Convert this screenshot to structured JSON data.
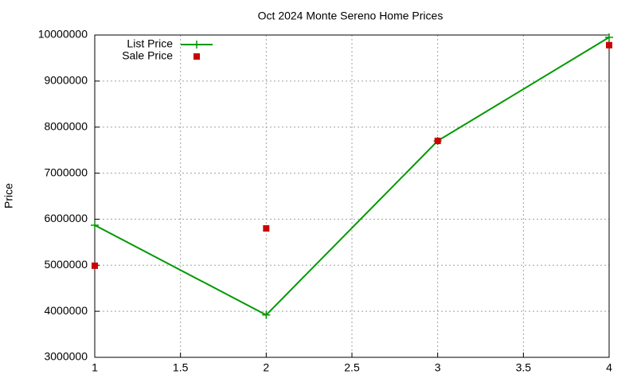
{
  "chart_data": {
    "type": "line",
    "title": "Oct 2024 Monte Sereno Home Prices",
    "y_label": "Price",
    "x": [
      1,
      2,
      3,
      4
    ],
    "series": [
      {
        "name": "List Price",
        "color": "#009900",
        "style": "linespoints",
        "values": [
          5870000,
          3920000,
          7700000,
          9950000
        ]
      },
      {
        "name": "Sale Price",
        "color": "#cc0000",
        "style": "points",
        "values": [
          4990000,
          5800000,
          7700000,
          9780000
        ]
      }
    ],
    "xlim": [
      1,
      4
    ],
    "xticks": [
      1,
      1.5,
      2,
      2.5,
      3,
      3.5,
      4
    ],
    "ylim": [
      3000000,
      10000000
    ],
    "yticks": [
      3000000,
      4000000,
      5000000,
      6000000,
      7000000,
      8000000,
      9000000,
      10000000
    ],
    "grid": true,
    "legend": "top-left"
  }
}
